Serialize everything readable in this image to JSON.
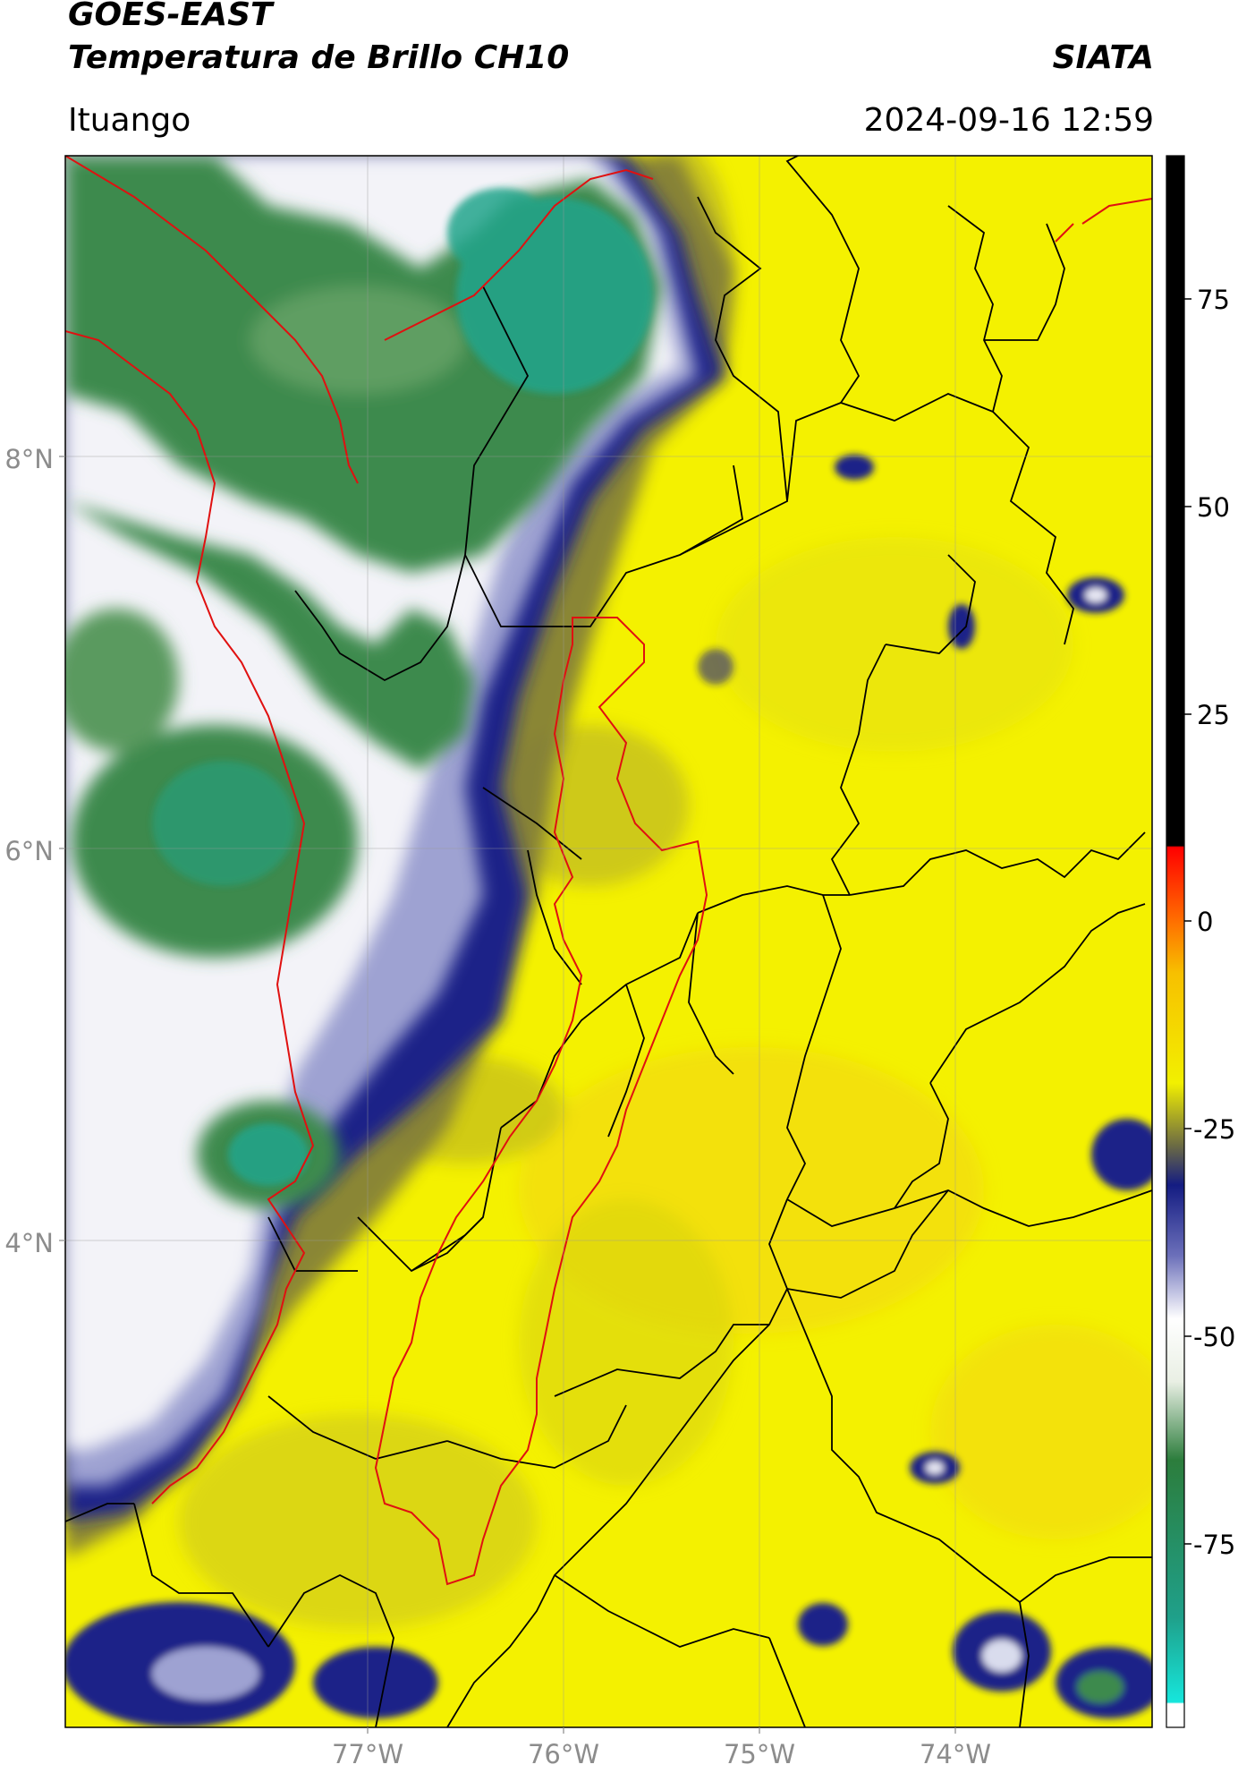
{
  "header": {
    "satellite": "GOES-EAST",
    "product": "Temperatura de Brillo CH10",
    "organization": "SIATA",
    "location": "Ituango",
    "timestamp": "2024-09-16 12:59"
  },
  "map": {
    "lat_labels": [
      "8°N",
      "6°N",
      "4°N"
    ],
    "lon_labels": [
      "77°W",
      "76°W",
      "75°W",
      "74°W"
    ],
    "region_colors": {
      "warm": "#f4f100",
      "warm_dark": "#c9c40a",
      "cold_edge": "#1a1f8a",
      "cold_mid": "#8f93c8",
      "cold_white": "#f2f2f7",
      "very_cold": "#2f8a4a",
      "coldest": "#22a58c",
      "boundary": "#000000",
      "coast": "#e01010"
    }
  },
  "colorbar": {
    "tick_labels": [
      "75",
      "50",
      "25",
      "0",
      "-25",
      "-50",
      "-75"
    ]
  }
}
